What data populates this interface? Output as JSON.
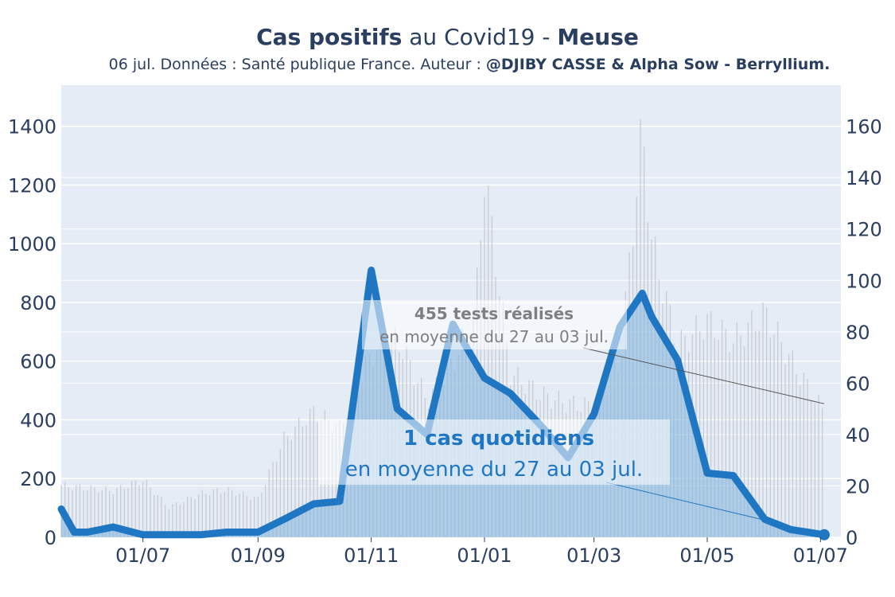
{
  "header": {
    "title_bold_1": "Cas positifs",
    "title_mid": " au Covid19 - ",
    "title_bold_2": "Meuse",
    "subtitle_plain": "06 jul. Données : Santé publique France. Auteur : ",
    "subtitle_bold": "@DJIBY CASSE & Alpha Sow - Berryllium."
  },
  "colors": {
    "plot_bg": "#e5ecf6",
    "grid": "#ffffff",
    "cases_line": "#1f77c4",
    "cases_line_light": "#9cc8ea",
    "cases_fill": "#7fb2dc",
    "tests_bars": "#c4c9d0",
    "text": "#2a3f5f",
    "ann_tests": "#7f7f7f",
    "ann_cases": "#1f77c4"
  },
  "chart_data": {
    "type": "line",
    "x_ticks": [
      "01/07",
      "01/09",
      "01/11",
      "01/01",
      "01/03",
      "01/05",
      "01/07"
    ],
    "y_left": {
      "range": [
        0,
        1540
      ],
      "ticks": [
        0,
        200,
        400,
        600,
        800,
        1000,
        1200,
        1400
      ]
    },
    "y_right": {
      "range": [
        0,
        176
      ],
      "ticks": [
        0,
        20,
        40,
        60,
        80,
        100,
        120,
        140,
        160
      ]
    },
    "series": [
      {
        "axis": "left",
        "kind": "bars",
        "x": [
          "2020-05-18",
          "2020-06-01",
          "2020-06-15",
          "2020-07-01",
          "2020-07-15",
          "2020-08-01",
          "2020-08-15",
          "2020-09-01",
          "2020-09-15",
          "2020-10-01",
          "2020-10-15",
          "2020-11-01",
          "2020-11-15",
          "2020-12-01",
          "2020-12-15",
          "2020-12-27",
          "2021-01-01",
          "2021-01-15",
          "2021-02-01",
          "2021-02-15",
          "2021-03-01",
          "2021-03-15",
          "2021-03-27",
          "2021-04-01",
          "2021-04-15",
          "2021-05-01",
          "2021-05-15",
          "2021-06-01",
          "2021-06-15",
          "2021-07-03"
        ],
        "values": [
          190,
          180,
          170,
          210,
          110,
          160,
          175,
          140,
          360,
          460,
          400,
          670,
          730,
          500,
          640,
          820,
          1330,
          600,
          520,
          490,
          480,
          640,
          1500,
          1080,
          700,
          790,
          720,
          820,
          650,
          455
        ]
      },
      {
        "axis": "right",
        "kind": "line",
        "x": [
          "2020-05-18",
          "2020-05-25",
          "2020-06-01",
          "2020-06-15",
          "2020-07-01",
          "2020-07-15",
          "2020-08-01",
          "2020-08-15",
          "2020-09-01",
          "2020-09-15",
          "2020-10-01",
          "2020-10-15",
          "2020-11-01",
          "2020-11-15",
          "2020-12-01",
          "2020-12-15",
          "2021-01-01",
          "2021-01-15",
          "2021-02-01",
          "2021-02-15",
          "2021-03-01",
          "2021-03-15",
          "2021-03-27",
          "2021-04-01",
          "2021-04-15",
          "2021-05-01",
          "2021-05-15",
          "2021-06-01",
          "2021-06-15",
          "2021-07-03"
        ],
        "values": [
          11,
          2,
          2,
          4,
          1,
          1,
          1,
          2,
          2,
          7,
          13,
          14,
          104,
          50,
          40,
          83,
          62,
          56,
          43,
          31,
          48,
          82,
          95,
          86,
          69,
          25,
          24,
          7,
          3,
          1
        ]
      }
    ],
    "annotations": [
      {
        "bold": "455 tests réalisés",
        "plain": "en moyenne du 27 au 03 jul."
      },
      {
        "bold": "1 cas quotidiens",
        "plain": "en moyenne du 27 au 03 jul."
      }
    ]
  }
}
